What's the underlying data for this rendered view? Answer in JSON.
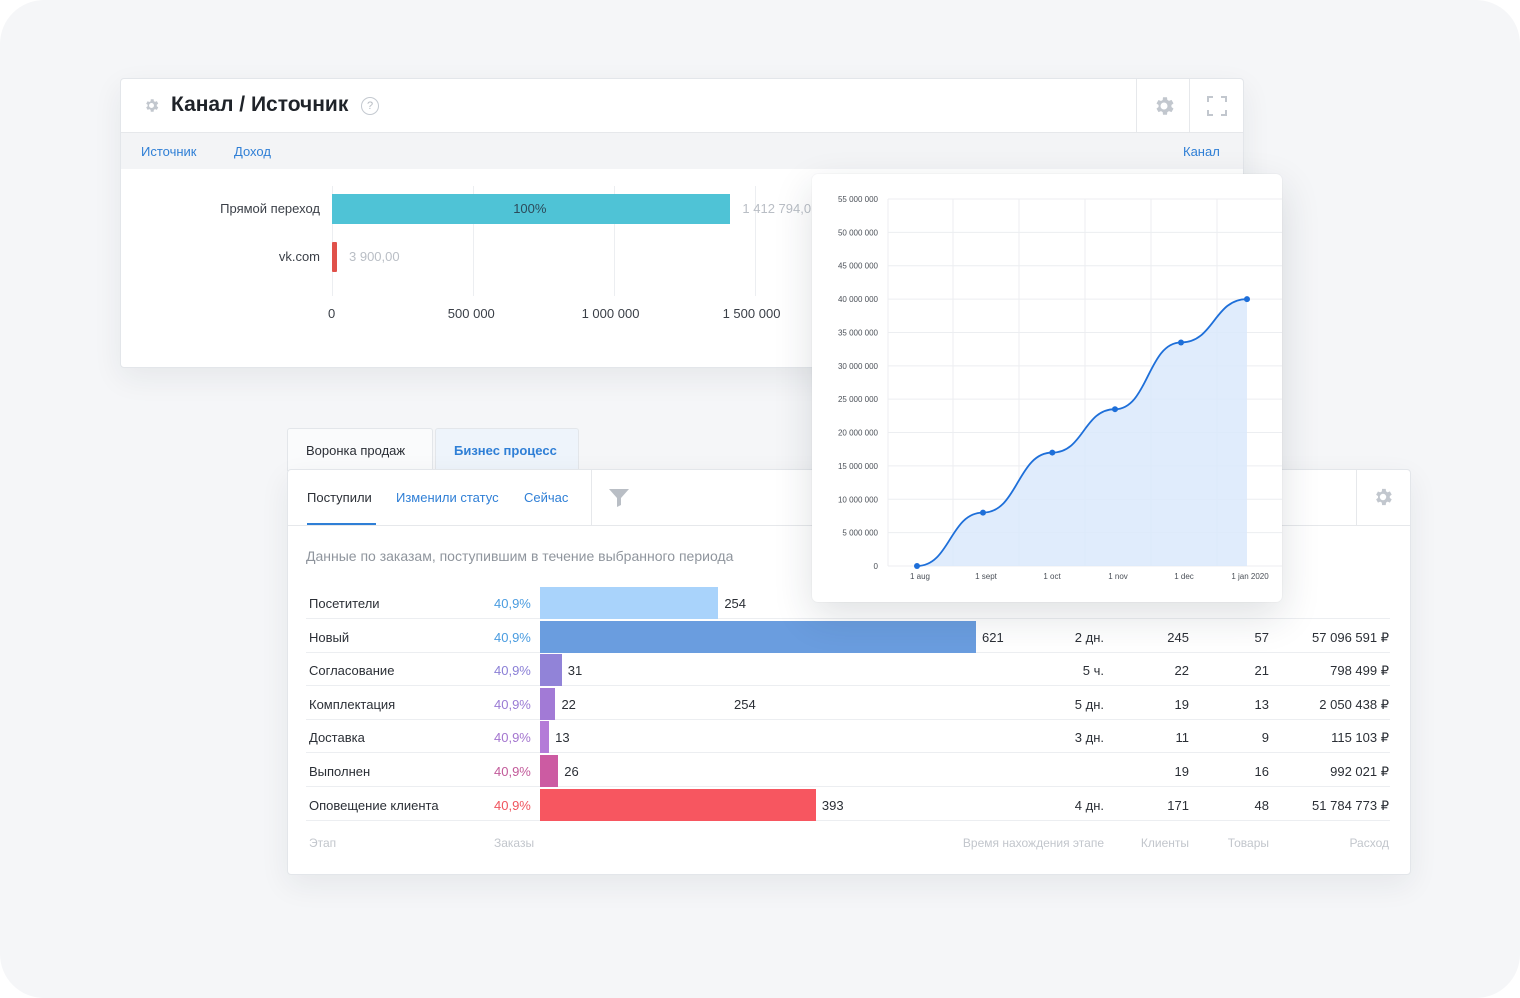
{
  "channel_panel": {
    "title": "Канал / Источник",
    "help": "?",
    "tabs": [
      "Источник",
      "Доход"
    ],
    "right_tab": "Канал",
    "bars": [
      {
        "label": "Прямой переход",
        "value": 1412794,
        "value_text": "1 412 794,0",
        "inner_text": "100%",
        "color": "#4fc3d6"
      },
      {
        "label": "vk.com",
        "value": 3900,
        "value_text": "3 900,00",
        "inner_text": "",
        "color": "#e0514a"
      }
    ],
    "axis_max": 1750000,
    "ticks": [
      {
        "value": 0,
        "label": "0"
      },
      {
        "value": 500000,
        "label": "500 000"
      },
      {
        "value": 1000000,
        "label": "1 000 000"
      },
      {
        "value": 1500000,
        "label": "1 500 000"
      }
    ]
  },
  "funnel": {
    "top_tabs": [
      "Воронка продаж",
      "Бизнес процесс"
    ],
    "sub_tabs": [
      "Поступили",
      "Изменили статус",
      "Сейчас"
    ],
    "description": "Данные по заказам, поступившим в течение выбранного периода",
    "max_orders": 621,
    "rows": [
      {
        "stage": "Посетители",
        "pct": "40,9%",
        "pct_color": "#4a9ce0",
        "orders": 254,
        "orders_text": "254",
        "bar_color": "#a9d3fb",
        "extra": "",
        "time": "",
        "clients": "",
        "goods": "",
        "cost": ""
      },
      {
        "stage": "Новый",
        "pct": "40,9%",
        "pct_color": "#4a9ce0",
        "orders": 621,
        "orders_text": "621",
        "bar_color": "#6a9ddf",
        "extra": "",
        "time": "2 дн.",
        "clients": "245",
        "goods": "57",
        "cost": "57 096 591 ₽"
      },
      {
        "stage": "Согласование",
        "pct": "40,9%",
        "pct_color": "#8a7fd6",
        "orders": 31,
        "orders_text": "31",
        "bar_color": "#9183d8",
        "extra": "",
        "time": "5 ч.",
        "clients": "22",
        "goods": "21",
        "cost": "798 499 ₽"
      },
      {
        "stage": "Комплектация",
        "pct": "40,9%",
        "pct_color": "#9a7bd4",
        "orders": 22,
        "orders_text": "22",
        "bar_color": "#a27ad6",
        "extra": "254",
        "time": "5 дн.",
        "clients": "19",
        "goods": "13",
        "cost": "2 050 438 ₽"
      },
      {
        "stage": "Доставка",
        "pct": "40,9%",
        "pct_color": "#a476cf",
        "orders": 13,
        "orders_text": "13",
        "bar_color": "#b47bd8",
        "extra": "",
        "time": "3 дн.",
        "clients": "11",
        "goods": "9",
        "cost": "115 103 ₽"
      },
      {
        "stage": "Выполнен",
        "pct": "40,9%",
        "pct_color": "#c25a9a",
        "orders": 26,
        "orders_text": "26",
        "bar_color": "#cc5ba2",
        "extra": "",
        "time": "",
        "clients": "19",
        "goods": "16",
        "cost": "992 021 ₽"
      },
      {
        "stage": "Оповещение клиента",
        "pct": "40,9%",
        "pct_color": "#f0555e",
        "orders": 393,
        "orders_text": "393",
        "bar_color": "#f75660",
        "extra": "",
        "time": "4 дн.",
        "clients": "171",
        "goods": "48",
        "cost": "51 784 773 ₽"
      }
    ],
    "columns": {
      "stage": "Этап",
      "orders": "Заказы",
      "time": "Время нахождения этапе",
      "clients": "Клиенты",
      "goods": "Товары",
      "cost": "Расход"
    }
  },
  "chart_data": {
    "type": "area",
    "title": "",
    "xlabel": "",
    "ylabel": "",
    "x": [
      "1 aug",
      "1 sept",
      "1 oct",
      "1 nov",
      "1 dec",
      "1 jan 2020"
    ],
    "ylim": [
      0,
      55000000
    ],
    "yticks": [
      "0",
      "5 000 000",
      "10 000 000",
      "15 000 000",
      "20 000 000",
      "25 000 000",
      "30 000 000",
      "35 000 000",
      "40 000 000",
      "45 000 000",
      "50 000 000",
      "55 000 000"
    ],
    "points": [
      {
        "t": 0,
        "v": 0
      },
      {
        "t": 1,
        "v": 8000000
      },
      {
        "t": 2.05,
        "v": 17000000
      },
      {
        "t": 3,
        "v": 23500000
      },
      {
        "t": 4,
        "v": 33500000
      },
      {
        "t": 5,
        "v": 40000000
      }
    ],
    "line_color": "#1e6fd9",
    "fill_color": "#dbe9fb"
  }
}
